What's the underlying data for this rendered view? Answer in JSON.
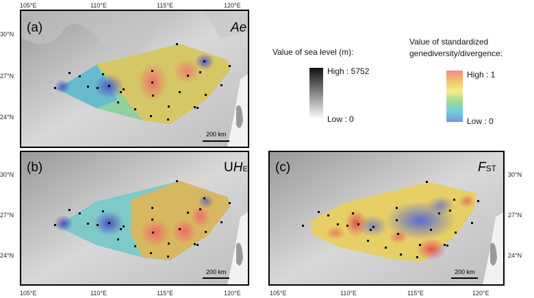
{
  "panels": [
    {
      "id": "a",
      "label": "(a)",
      "title": "Ae",
      "title_sub": ""
    },
    {
      "id": "b",
      "label": "(b)",
      "title": "UH",
      "title_sub": "E"
    },
    {
      "id": "c",
      "label": "(c)",
      "title": "F",
      "title_sub": "ST"
    }
  ],
  "scale_bar": "200 km",
  "axis": {
    "top_lon": [
      "105°E",
      "110°E",
      "115°E",
      "120°E"
    ],
    "bottom_lon": [
      "105°E",
      "110°E",
      "115°E",
      "120°E"
    ],
    "lat_a": [
      "30°N",
      "27°N",
      "24°N"
    ],
    "lat_b": [
      "30°N",
      "27°N",
      "24°N"
    ],
    "lat_c": [
      "30°N",
      "27°N",
      "24°N"
    ]
  },
  "legend_sea": {
    "title": "Value of sea level (m):",
    "high": "High : 5752",
    "low": "Low : 0"
  },
  "legend_div": {
    "title_line1": "Value of standardized",
    "title_line2": "genediversity/divergence:",
    "high": "High : 1",
    "low": "Low : 0"
  }
}
